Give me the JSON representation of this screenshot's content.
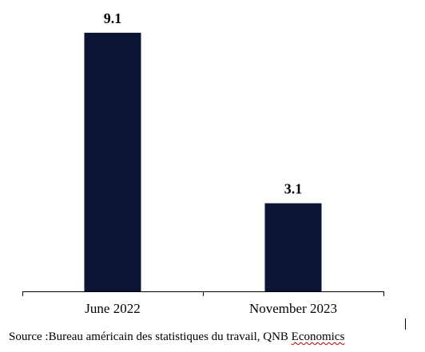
{
  "chart_data": {
    "type": "bar",
    "categories": [
      "June 2022",
      "November 2023"
    ],
    "values": [
      9.1,
      3.1
    ],
    "data_labels": [
      "9.1",
      "3.1"
    ],
    "ylim": [
      0,
      10
    ],
    "grid": false,
    "bar_color": "#0b1435",
    "axis_color": "#000000"
  },
  "source": {
    "prefix": "Source :Bureau américain des statistiques du travail, QNB ",
    "highlighted": "Economics"
  }
}
